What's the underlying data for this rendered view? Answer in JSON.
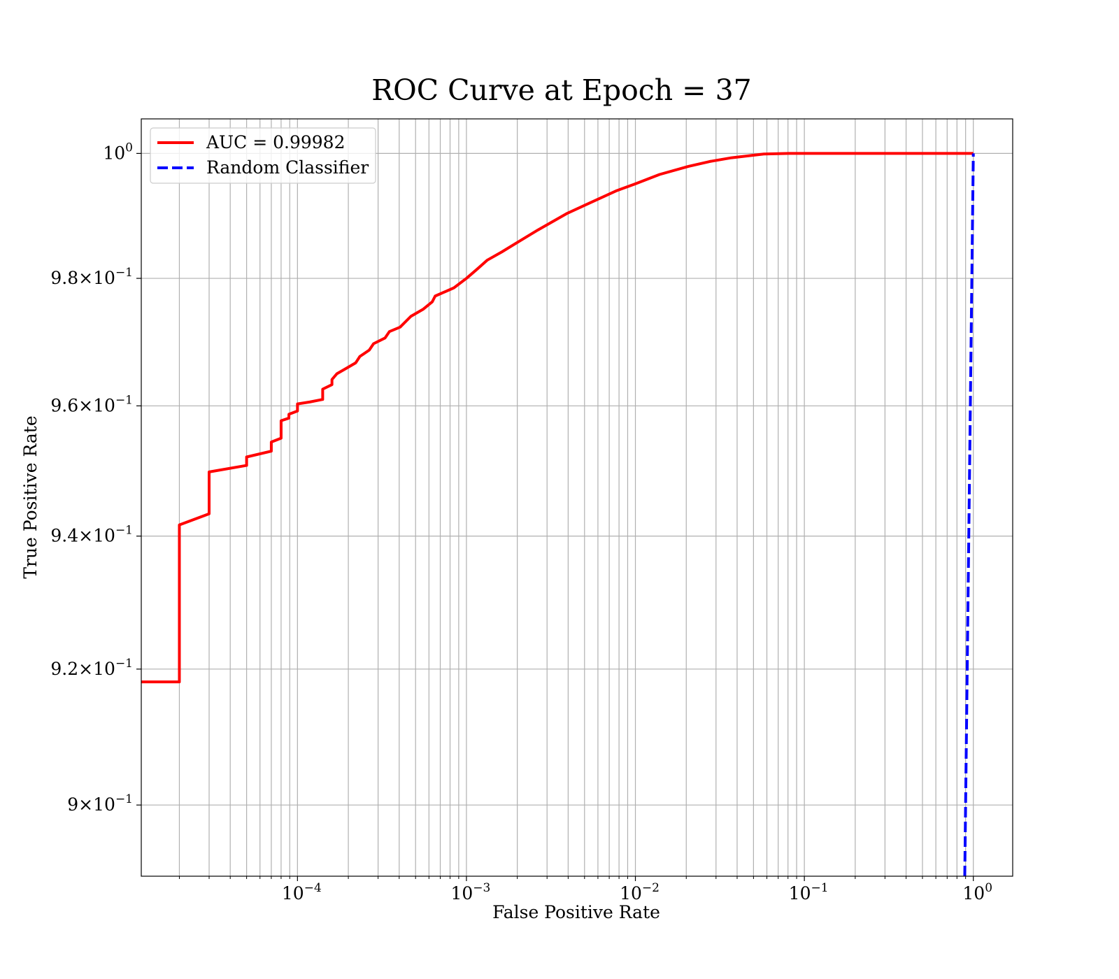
{
  "chart_data": {
    "type": "line",
    "title": "ROC Curve at Epoch = 37",
    "xlabel": "False Positive Rate",
    "ylabel": "True Positive Rate",
    "xscale": "log",
    "yscale": "log",
    "grid": true,
    "legend": "upper left",
    "xlim": [
      1.19e-05,
      1.71
    ],
    "ylim": [
      0.8897,
      1.0056
    ],
    "xticks": [
      {
        "value": 0.0001,
        "label": "10",
        "exponent": "−4"
      },
      {
        "value": 0.001,
        "label": "10",
        "exponent": "−3"
      },
      {
        "value": 0.01,
        "label": "10",
        "exponent": "−2"
      },
      {
        "value": 0.1,
        "label": "10",
        "exponent": "−1"
      },
      {
        "value": 1,
        "label": "10",
        "exponent": "0"
      }
    ],
    "xminorticks": [
      2e-05,
      3e-05,
      4e-05,
      5e-05,
      6e-05,
      7e-05,
      8e-05,
      9e-05,
      0.0002,
      0.0003,
      0.0004,
      0.0005,
      0.0006,
      0.0007,
      0.0008,
      0.0009,
      0.002,
      0.003,
      0.004,
      0.005,
      0.006,
      0.007,
      0.008,
      0.009,
      0.02,
      0.03,
      0.04,
      0.05,
      0.06,
      0.07,
      0.08,
      0.09,
      0.2,
      0.3,
      0.4,
      0.5,
      0.6,
      0.7,
      0.8,
      0.9
    ],
    "yticks": [
      {
        "value": 0.9,
        "label": "9×10",
        "exponent": "−1"
      },
      {
        "value": 0.92,
        "label": "9.2×10",
        "exponent": "−1"
      },
      {
        "value": 0.94,
        "label": "9.4×10",
        "exponent": "−1"
      },
      {
        "value": 0.96,
        "label": "9.6×10",
        "exponent": "−1"
      },
      {
        "value": 0.98,
        "label": "9.8×10",
        "exponent": "−1"
      },
      {
        "value": 1,
        "label": "10",
        "exponent": "0"
      }
    ],
    "series": [
      {
        "name": "AUC = 0.99982",
        "color": "#ff0000",
        "linestyle": "solid",
        "x": [
          1.19e-05,
          2e-05,
          2e-05,
          3e-05,
          3e-05,
          5e-05,
          5e-05,
          7e-05,
          7e-05,
          8e-05,
          8e-05,
          8.9e-05,
          8.9e-05,
          0.0001,
          0.0001,
          0.000118,
          0.000141,
          0.000141,
          0.00016,
          0.00016,
          0.000171,
          0.000196,
          0.000221,
          0.000234,
          0.000266,
          0.000282,
          0.00033,
          0.00035,
          0.000405,
          0.000469,
          0.000553,
          0.000628,
          0.000653,
          0.000843,
          0.001,
          0.00115,
          0.00133,
          0.00162,
          0.00197,
          0.00265,
          0.00391,
          0.00525,
          0.00776,
          0.01,
          0.0139,
          0.0206,
          0.0276,
          0.0371,
          0.0575,
          0.081,
          1.0
        ],
        "values": [
          0.9181,
          0.9181,
          0.9417,
          0.9434,
          0.9498,
          0.9508,
          0.9521,
          0.953,
          0.9544,
          0.955,
          0.9577,
          0.9581,
          0.9587,
          0.9592,
          0.9603,
          0.9606,
          0.961,
          0.9626,
          0.9633,
          0.9641,
          0.965,
          0.9659,
          0.9667,
          0.9677,
          0.9687,
          0.9697,
          0.9706,
          0.9716,
          0.9723,
          0.974,
          0.9751,
          0.9763,
          0.9772,
          0.9785,
          0.98,
          0.9814,
          0.9829,
          0.9842,
          0.9856,
          0.9877,
          0.9903,
          0.9919,
          0.994,
          0.9951,
          0.9966,
          0.9979,
          0.9987,
          0.9993,
          0.9999,
          1.0,
          1.0
        ]
      },
      {
        "name": "Random Classifier",
        "color": "#0000ff",
        "linestyle": "dashed",
        "x": [
          0.8897,
          1.0
        ],
        "values": [
          0.8897,
          1.0
        ]
      }
    ]
  }
}
